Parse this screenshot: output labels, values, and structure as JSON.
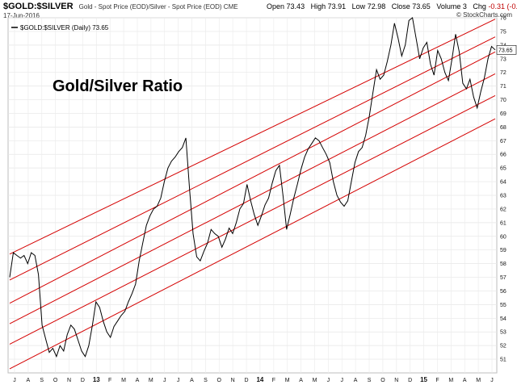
{
  "header": {
    "symbol": "$GOLD:$SILVER",
    "description": "Gold - Spot Price (EOD)/Silver - Spot Price (EOD)  CME",
    "date": "17-Jun-2016",
    "open_label": "Open",
    "open": "73.43",
    "high_label": "High",
    "high": "73.91",
    "low_label": "Low",
    "low": "72.98",
    "close_label": "Close",
    "close": "73.65",
    "volume_label": "Volume",
    "volume": "3",
    "chg_label": "Chg",
    "chg": "-0.31 (-0.42%)",
    "attribution": "© StockCharts.com"
  },
  "chart_data": {
    "type": "line",
    "legend_entry": "$GOLD:$SILVER (Daily) 73.65",
    "annotation": "Gold/Silver Ratio",
    "last_value_label": "73.65",
    "ylim": [
      50,
      76
    ],
    "y_ticks": [
      51,
      52,
      53,
      54,
      55,
      56,
      57,
      58,
      59,
      60,
      61,
      62,
      63,
      64,
      65,
      66,
      67,
      68,
      69,
      70,
      71,
      72,
      73,
      74,
      75,
      76
    ],
    "x_tick_labels": [
      "J",
      "A",
      "S",
      "O",
      "N",
      "D",
      "13",
      "F",
      "M",
      "A",
      "M",
      "J",
      "J",
      "A",
      "S",
      "O",
      "N",
      "D",
      "14",
      "F",
      "M",
      "A",
      "M",
      "J",
      "J",
      "A",
      "S",
      "O",
      "N",
      "D",
      "15",
      "F",
      "M",
      "A",
      "M",
      "J"
    ],
    "x_bold_labels": [
      "13",
      "14",
      "15"
    ],
    "grid": true,
    "line_color": "#000000",
    "channel_color": "#d40000",
    "series": [
      {
        "points": [
          [
            0,
            57.0
          ],
          [
            1,
            58.8
          ],
          [
            2,
            58.6
          ],
          [
            3,
            58.4
          ],
          [
            4,
            58.6
          ],
          [
            5,
            58.0
          ],
          [
            6,
            58.8
          ],
          [
            7,
            58.6
          ],
          [
            8,
            57.2
          ],
          [
            9,
            53.5
          ],
          [
            10,
            52.5
          ],
          [
            11,
            51.5
          ],
          [
            12,
            51.8
          ],
          [
            13,
            51.2
          ],
          [
            14,
            52.0
          ],
          [
            15,
            51.6
          ],
          [
            16,
            52.8
          ],
          [
            17,
            53.5
          ],
          [
            18,
            53.2
          ],
          [
            19,
            52.4
          ],
          [
            20,
            51.6
          ],
          [
            21,
            51.2
          ],
          [
            22,
            52.0
          ],
          [
            23,
            53.5
          ],
          [
            24,
            55.2
          ],
          [
            25,
            54.8
          ],
          [
            26,
            53.8
          ],
          [
            27,
            53.0
          ],
          [
            28,
            52.6
          ],
          [
            29,
            53.4
          ],
          [
            30,
            53.8
          ],
          [
            31,
            54.2
          ],
          [
            32,
            54.5
          ],
          [
            33,
            55.2
          ],
          [
            34,
            55.8
          ],
          [
            35,
            56.5
          ],
          [
            36,
            58.2
          ],
          [
            37,
            59.5
          ],
          [
            38,
            60.8
          ],
          [
            39,
            61.5
          ],
          [
            40,
            62.0
          ],
          [
            41,
            62.2
          ],
          [
            42,
            62.8
          ],
          [
            43,
            64.0
          ],
          [
            44,
            65.0
          ],
          [
            45,
            65.5
          ],
          [
            46,
            65.8
          ],
          [
            47,
            66.2
          ],
          [
            48,
            66.5
          ],
          [
            49,
            67.2
          ],
          [
            50,
            63.5
          ],
          [
            51,
            60.2
          ],
          [
            52,
            58.5
          ],
          [
            53,
            58.2
          ],
          [
            54,
            58.9
          ],
          [
            55,
            59.5
          ],
          [
            56,
            60.5
          ],
          [
            57,
            60.2
          ],
          [
            58,
            60.0
          ],
          [
            59,
            59.2
          ],
          [
            60,
            59.8
          ],
          [
            61,
            60.6
          ],
          [
            62,
            60.2
          ],
          [
            63,
            61.0
          ],
          [
            64,
            62.0
          ],
          [
            65,
            62.4
          ],
          [
            66,
            63.8
          ],
          [
            67,
            62.6
          ],
          [
            68,
            61.6
          ],
          [
            69,
            60.8
          ],
          [
            70,
            61.5
          ],
          [
            71,
            62.3
          ],
          [
            72,
            62.8
          ],
          [
            73,
            63.9
          ],
          [
            74,
            64.8
          ],
          [
            75,
            65.2
          ],
          [
            76,
            63.0
          ],
          [
            77,
            60.5
          ],
          [
            78,
            61.6
          ],
          [
            79,
            62.8
          ],
          [
            80,
            63.8
          ],
          [
            81,
            64.9
          ],
          [
            82,
            65.8
          ],
          [
            83,
            66.4
          ],
          [
            84,
            66.8
          ],
          [
            85,
            67.2
          ],
          [
            86,
            67.0
          ],
          [
            87,
            66.5
          ],
          [
            88,
            66.0
          ],
          [
            89,
            65.4
          ],
          [
            90,
            64.0
          ],
          [
            91,
            63.0
          ],
          [
            92,
            62.5
          ],
          [
            93,
            62.2
          ],
          [
            94,
            62.6
          ],
          [
            95,
            64.0
          ],
          [
            96,
            65.4
          ],
          [
            97,
            66.2
          ],
          [
            98,
            66.5
          ],
          [
            99,
            67.4
          ],
          [
            100,
            68.8
          ],
          [
            101,
            70.5
          ],
          [
            102,
            72.2
          ],
          [
            103,
            71.5
          ],
          [
            104,
            71.8
          ],
          [
            105,
            72.8
          ],
          [
            106,
            74.0
          ],
          [
            107,
            75.6
          ],
          [
            108,
            74.5
          ],
          [
            109,
            73.2
          ],
          [
            110,
            74.0
          ],
          [
            111,
            75.8
          ],
          [
            112,
            76.0
          ],
          [
            113,
            74.5
          ],
          [
            114,
            73.0
          ],
          [
            115,
            73.8
          ],
          [
            116,
            74.2
          ],
          [
            117,
            72.6
          ],
          [
            118,
            71.8
          ],
          [
            119,
            73.6
          ],
          [
            120,
            73.0
          ],
          [
            121,
            72.0
          ],
          [
            122,
            71.4
          ],
          [
            123,
            73.0
          ],
          [
            124,
            74.8
          ],
          [
            125,
            73.5
          ],
          [
            126,
            71.2
          ],
          [
            127,
            70.8
          ],
          [
            128,
            71.5
          ],
          [
            129,
            70.2
          ],
          [
            130,
            69.4
          ],
          [
            131,
            70.6
          ],
          [
            132,
            71.6
          ],
          [
            133,
            73.0
          ],
          [
            134,
            73.9
          ],
          [
            135,
            73.65
          ]
        ]
      }
    ],
    "channel_lines": [
      {
        "x": [
          0,
          135
        ],
        "y": [
          58.7,
          75.9
        ]
      },
      {
        "x": [
          0,
          135
        ],
        "y": [
          56.8,
          74.6
        ]
      },
      {
        "x": [
          0,
          135
        ],
        "y": [
          55.1,
          73.5
        ]
      },
      {
        "x": [
          0,
          135
        ],
        "y": [
          53.6,
          71.9
        ]
      },
      {
        "x": [
          0,
          135
        ],
        "y": [
          52.1,
          70.3
        ]
      },
      {
        "x": [
          0,
          135
        ],
        "y": [
          50.3,
          68.6
        ]
      }
    ]
  }
}
